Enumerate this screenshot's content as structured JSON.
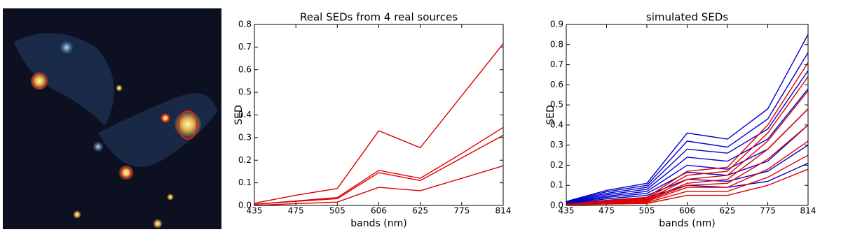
{
  "chart_data": [
    {
      "type": "line",
      "title": "Real SEDs from 4 real sources",
      "x_label": "bands (nm)",
      "y_label": "SED",
      "categories": [
        "435",
        "475",
        "505",
        "606",
        "625",
        "775",
        "814"
      ],
      "ylim": [
        0,
        0.8
      ],
      "yticks": [
        {
          "value": 0,
          "label": "0.0"
        },
        0.1,
        0.2,
        0.3,
        0.4,
        0.5,
        0.6,
        0.7,
        0.8
      ],
      "series": [
        {
          "color": "#dd0000",
          "values": [
            0.01,
            0.045,
            0.075,
            0.33,
            0.255,
            0.485,
            0.715
          ]
        },
        {
          "color": "#dd0000",
          "values": [
            0.005,
            0.02,
            0.035,
            0.155,
            0.12,
            0.23,
            0.345
          ]
        },
        {
          "color": "#dd0000",
          "values": [
            0.005,
            0.018,
            0.03,
            0.145,
            0.11,
            0.21,
            0.31
          ]
        },
        {
          "color": "#dd0000",
          "values": [
            0.0,
            0.008,
            0.015,
            0.08,
            0.065,
            0.12,
            0.175
          ]
        }
      ]
    },
    {
      "type": "line",
      "title": "simulated SEDs",
      "x_label": "bands (nm)",
      "y_label": "SED",
      "categories": [
        "435",
        "475",
        "505",
        "606",
        "625",
        "775",
        "814"
      ],
      "ylim": [
        0,
        0.9
      ],
      "yticks": [
        {
          "value": 0,
          "label": "0.0"
        },
        0.1,
        0.2,
        0.3,
        0.4,
        0.5,
        0.6,
        0.7,
        0.8,
        0.9
      ],
      "series": [
        {
          "color": "#0000cc",
          "values": [
            0.02,
            0.075,
            0.11,
            0.36,
            0.33,
            0.48,
            0.85
          ]
        },
        {
          "color": "#0000cc",
          "values": [
            0.018,
            0.068,
            0.1,
            0.32,
            0.29,
            0.43,
            0.76
          ]
        },
        {
          "color": "#0000cc",
          "values": [
            0.016,
            0.06,
            0.09,
            0.28,
            0.26,
            0.38,
            0.67
          ]
        },
        {
          "color": "#0000cc",
          "values": [
            0.014,
            0.053,
            0.08,
            0.24,
            0.22,
            0.33,
            0.58
          ]
        },
        {
          "color": "#0000cc",
          "values": [
            0.012,
            0.046,
            0.07,
            0.2,
            0.18,
            0.28,
            0.48
          ]
        },
        {
          "color": "#0000cc",
          "values": [
            0.01,
            0.04,
            0.06,
            0.165,
            0.15,
            0.22,
            0.4
          ]
        },
        {
          "color": "#0000cc",
          "values": [
            0.008,
            0.033,
            0.05,
            0.13,
            0.12,
            0.17,
            0.3
          ]
        },
        {
          "color": "#0000cc",
          "values": [
            0.006,
            0.026,
            0.04,
            0.1,
            0.09,
            0.12,
            0.21
          ]
        },
        {
          "color": "#dd0000",
          "values": [
            0.006,
            0.024,
            0.04,
            0.17,
            0.19,
            0.4,
            0.71
          ]
        },
        {
          "color": "#dd0000",
          "values": [
            0.006,
            0.022,
            0.035,
            0.15,
            0.17,
            0.36,
            0.64
          ]
        },
        {
          "color": "#dd0000",
          "values": [
            0.005,
            0.02,
            0.03,
            0.13,
            0.15,
            0.32,
            0.57
          ]
        },
        {
          "color": "#dd0000",
          "values": [
            0.005,
            0.018,
            0.028,
            0.11,
            0.13,
            0.28,
            0.48
          ]
        },
        {
          "color": "#dd0000",
          "values": [
            0.004,
            0.016,
            0.025,
            0.1,
            0.11,
            0.23,
            0.4
          ]
        },
        {
          "color": "#dd0000",
          "values": [
            0.004,
            0.013,
            0.02,
            0.09,
            0.09,
            0.18,
            0.32
          ]
        },
        {
          "color": "#dd0000",
          "values": [
            0.003,
            0.01,
            0.015,
            0.07,
            0.07,
            0.14,
            0.25
          ]
        },
        {
          "color": "#dd0000",
          "values": [
            0.002,
            0.007,
            0.01,
            0.05,
            0.05,
            0.1,
            0.18
          ]
        }
      ]
    }
  ]
}
